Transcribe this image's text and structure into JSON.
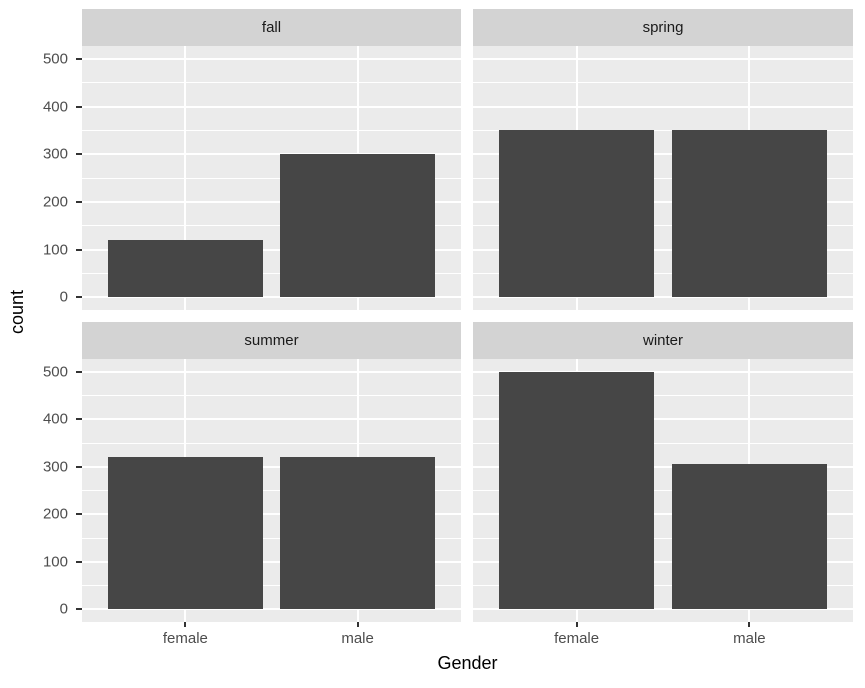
{
  "axis": {
    "y_title": "count",
    "x_title": "Gender",
    "y_ticks": [
      0,
      100,
      200,
      300,
      400,
      500
    ],
    "x_categories": [
      "female",
      "male"
    ]
  },
  "chart_data": {
    "type": "bar",
    "title": "",
    "xlabel": "Gender",
    "ylabel": "count",
    "facet_layout": "2x2",
    "categories": [
      "female",
      "male"
    ],
    "facets": [
      {
        "label": "fall",
        "values": [
          120,
          300
        ]
      },
      {
        "label": "spring",
        "values": [
          350,
          350
        ]
      },
      {
        "label": "summer",
        "values": [
          320,
          320
        ]
      },
      {
        "label": "winter",
        "values": [
          500,
          305
        ]
      }
    ],
    "ylim": [
      -27,
      527
    ],
    "y_major_gridlines": [
      0,
      100,
      200,
      300,
      400,
      500
    ],
    "y_minor_gridlines": [
      50,
      150,
      250,
      350,
      450
    ],
    "grid": true,
    "legend": "none",
    "style": "ggplot2-grey"
  },
  "colors": {
    "bar": "#464646",
    "panel_bg": "#EBEBEB",
    "strip_bg": "#D3D3D3",
    "gridline": "#FFFFFF",
    "tick_mark": "#333333",
    "tick_label": "#4D4D4D",
    "strip_label": "#1A1A1A",
    "axis_title": "#000000",
    "figure_bg": "#FFFFFF"
  }
}
